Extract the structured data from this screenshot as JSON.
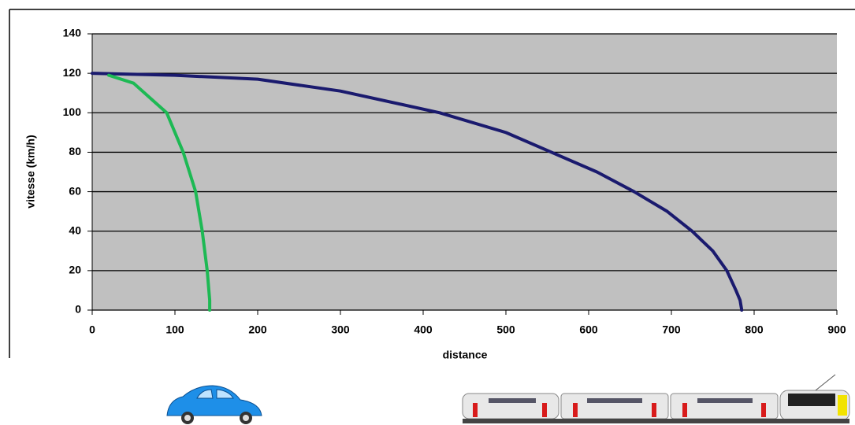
{
  "chart_data": {
    "type": "line",
    "x_label": "distance",
    "y_label": "vitesse (km/h)",
    "xlim": [
      0,
      900
    ],
    "xticks": [
      0,
      100,
      200,
      300,
      400,
      500,
      600,
      700,
      800,
      900
    ],
    "ylim": [
      0,
      140
    ],
    "yticks": [
      0,
      20,
      40,
      60,
      80,
      100,
      120,
      140
    ],
    "grid": true,
    "series": [
      {
        "color": "#1a1a6e",
        "x": [
          0,
          100,
          200,
          300,
          420,
          500,
          555,
          610,
          655,
          695,
          725,
          750,
          767,
          778,
          783,
          785
        ],
        "values": [
          120,
          119,
          117,
          111,
          100,
          90,
          80,
          70,
          60,
          50,
          40,
          30,
          20,
          10,
          5,
          0
        ]
      },
      {
        "color": "#1db954",
        "x": [
          20,
          50,
          90,
          110,
          125,
          133,
          139,
          142,
          142
        ],
        "values": [
          119,
          115,
          100,
          80,
          60,
          40,
          20,
          5,
          0
        ]
      }
    ]
  }
}
